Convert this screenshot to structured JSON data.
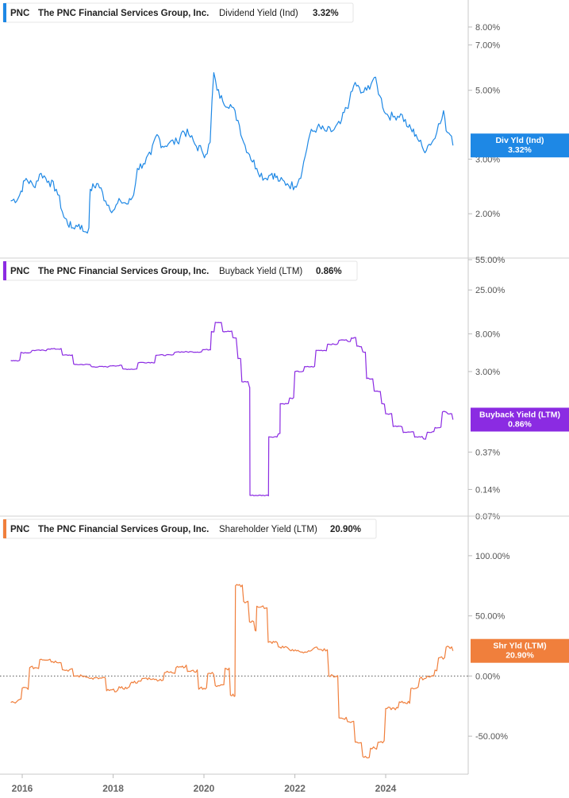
{
  "chart_data": [
    {
      "type": "line",
      "ticker": "PNC",
      "company": "The PNC Financial Services Group, Inc.",
      "metric": "Dividend Yield (Ind)",
      "current_value": "3.32%",
      "badge_label": "Div Yld (Ind)",
      "color": "#1e88e5",
      "scale": "log",
      "ylim": [
        1.5,
        9.0
      ],
      "yticks": [
        {
          "v": 8.0,
          "label": "8.00%"
        },
        {
          "v": 7.0,
          "label": "7.00%"
        },
        {
          "v": 5.0,
          "label": "5.00%"
        },
        {
          "v": 3.0,
          "label": "3.00%"
        },
        {
          "v": 2.0,
          "label": "2.00%"
        }
      ],
      "zero_line": false,
      "points": [
        [
          "2015-10-01",
          2.2
        ],
        [
          "2015-12-01",
          2.25
        ],
        [
          "2016-02-01",
          2.6
        ],
        [
          "2016-04-01",
          2.45
        ],
        [
          "2016-06-01",
          2.7
        ],
        [
          "2016-08-01",
          2.55
        ],
        [
          "2016-10-01",
          2.4
        ],
        [
          "2016-12-01",
          1.95
        ],
        [
          "2017-02-01",
          1.8
        ],
        [
          "2017-04-01",
          1.85
        ],
        [
          "2017-05-15",
          1.75
        ],
        [
          "2017-06-20",
          1.8
        ],
        [
          "2017-07-01",
          2.4
        ],
        [
          "2017-09-01",
          2.5
        ],
        [
          "2017-11-01",
          2.2
        ],
        [
          "2018-01-01",
          2.05
        ],
        [
          "2018-03-01",
          2.2
        ],
        [
          "2018-05-01",
          2.15
        ],
        [
          "2018-06-15",
          2.3
        ],
        [
          "2018-07-15",
          2.8
        ],
        [
          "2018-09-01",
          2.9
        ],
        [
          "2018-11-01",
          3.1
        ],
        [
          "2018-12-20",
          3.6
        ],
        [
          "2019-02-01",
          3.3
        ],
        [
          "2019-04-01",
          3.4
        ],
        [
          "2019-06-01",
          3.4
        ],
        [
          "2019-07-15",
          3.7
        ],
        [
          "2019-09-01",
          3.6
        ],
        [
          "2019-11-01",
          3.3
        ],
        [
          "2019-12-15",
          3.2
        ],
        [
          "2020-01-15",
          3.1
        ],
        [
          "2020-02-20",
          3.4
        ],
        [
          "2020-03-20",
          5.7
        ],
        [
          "2020-04-15",
          5.0
        ],
        [
          "2020-06-01",
          4.6
        ],
        [
          "2020-08-01",
          4.5
        ],
        [
          "2020-10-01",
          4.0
        ],
        [
          "2020-11-15",
          3.4
        ],
        [
          "2021-01-01",
          3.1
        ],
        [
          "2021-03-01",
          2.8
        ],
        [
          "2021-05-01",
          2.6
        ],
        [
          "2021-07-01",
          2.7
        ],
        [
          "2021-09-01",
          2.55
        ],
        [
          "2021-11-01",
          2.5
        ],
        [
          "2022-01-01",
          2.45
        ],
        [
          "2022-03-01",
          2.75
        ],
        [
          "2022-05-01",
          3.6
        ],
        [
          "2022-07-01",
          3.8
        ],
        [
          "2022-09-01",
          3.7
        ],
        [
          "2022-11-01",
          3.7
        ],
        [
          "2023-01-01",
          3.9
        ],
        [
          "2023-03-15",
          4.6
        ],
        [
          "2023-05-01",
          5.3
        ],
        [
          "2023-06-15",
          4.9
        ],
        [
          "2023-08-01",
          5.0
        ],
        [
          "2023-10-01",
          5.5
        ],
        [
          "2023-11-15",
          4.8
        ],
        [
          "2024-01-01",
          4.2
        ],
        [
          "2024-03-01",
          4.1
        ],
        [
          "2024-05-01",
          4.2
        ],
        [
          "2024-07-01",
          3.8
        ],
        [
          "2024-09-01",
          3.6
        ],
        [
          "2024-11-01",
          3.2
        ],
        [
          "2024-12-15",
          3.35
        ],
        [
          "2025-02-01",
          3.5
        ],
        [
          "2025-03-01",
          3.9
        ],
        [
          "2025-04-10",
          4.3
        ],
        [
          "2025-05-01",
          3.7
        ],
        [
          "2025-06-01",
          3.6
        ],
        [
          "2025-06-25",
          3.32
        ]
      ]
    },
    {
      "type": "line",
      "ticker": "PNC",
      "company": "The PNC Financial Services Group, Inc.",
      "metric": "Buyback Yield (LTM)",
      "current_value": "0.86%",
      "badge_label": "Buyback Yield (LTM)",
      "color": "#8b2be2",
      "scale": "log",
      "ylim": [
        0.07,
        55.0
      ],
      "yticks": [
        {
          "v": 55.0,
          "label": "55.00%"
        },
        {
          "v": 25.0,
          "label": "25.00%"
        },
        {
          "v": 8.0,
          "label": "8.00%"
        },
        {
          "v": 3.0,
          "label": "3.00%"
        },
        {
          "v": 0.37,
          "label": "0.37%"
        },
        {
          "v": 0.14,
          "label": "0.14%"
        },
        {
          "v": 0.07,
          "label": "0.07%"
        }
      ],
      "zero_line": false,
      "points": [
        [
          "2015-10-01",
          4.0
        ],
        [
          "2016-01-01",
          4.9
        ],
        [
          "2016-04-01",
          5.2
        ],
        [
          "2016-08-01",
          5.4
        ],
        [
          "2016-12-01",
          4.6
        ],
        [
          "2017-03-01",
          3.6
        ],
        [
          "2017-08-01",
          3.4
        ],
        [
          "2018-01-01",
          3.5
        ],
        [
          "2018-04-01",
          3.2
        ],
        [
          "2018-08-01",
          3.8
        ],
        [
          "2019-01-01",
          4.6
        ],
        [
          "2019-06-01",
          5.0
        ],
        [
          "2019-10-01",
          5.0
        ],
        [
          "2020-01-01",
          5.3
        ],
        [
          "2020-02-15",
          5.3
        ],
        [
          "2020-03-01",
          8.5
        ],
        [
          "2020-04-01",
          10.8
        ],
        [
          "2020-06-01",
          8.5
        ],
        [
          "2020-09-01",
          7.2
        ],
        [
          "2020-10-01",
          4.2
        ],
        [
          "2020-11-01",
          2.3
        ],
        [
          "2021-01-01",
          2.0
        ],
        [
          "2021-01-05",
          0.12
        ],
        [
          "2021-06-01",
          0.12
        ],
        [
          "2021-06-05",
          0.55
        ],
        [
          "2021-09-01",
          0.6
        ],
        [
          "2021-09-05",
          1.3
        ],
        [
          "2021-12-01",
          1.5
        ],
        [
          "2022-01-01",
          3.0
        ],
        [
          "2022-04-01",
          3.4
        ],
        [
          "2022-07-01",
          5.2
        ],
        [
          "2022-10-01",
          6.1
        ],
        [
          "2023-01-01",
          6.8
        ],
        [
          "2023-03-01",
          6.6
        ],
        [
          "2023-04-01",
          7.2
        ],
        [
          "2023-05-15",
          5.8
        ],
        [
          "2023-07-01",
          5.0
        ],
        [
          "2023-08-01",
          2.5
        ],
        [
          "2023-10-01",
          1.8
        ],
        [
          "2023-12-01",
          1.3
        ],
        [
          "2024-01-01",
          1.0
        ],
        [
          "2024-03-01",
          0.72
        ],
        [
          "2024-06-01",
          0.62
        ],
        [
          "2024-09-01",
          0.55
        ],
        [
          "2024-11-01",
          0.52
        ],
        [
          "2024-12-01",
          0.62
        ],
        [
          "2025-02-01",
          0.7
        ],
        [
          "2025-04-01",
          1.05
        ],
        [
          "2025-05-15",
          1.0
        ],
        [
          "2025-06-25",
          0.86
        ]
      ]
    },
    {
      "type": "line",
      "ticker": "PNC",
      "company": "The PNC Financial Services Group, Inc.",
      "metric": "Shareholder Yield (LTM)",
      "current_value": "20.90%",
      "badge_label": "Shr Yld (LTM)",
      "color": "#f07f3c",
      "scale": "linear",
      "ylim": [
        -75.0,
        125.0
      ],
      "yticks": [
        {
          "v": 100.0,
          "label": "100.00%"
        },
        {
          "v": 50.0,
          "label": "50.00%"
        },
        {
          "v": 0.0,
          "label": "0.00%"
        },
        {
          "v": -50.0,
          "label": "-50.00%"
        }
      ],
      "zero_line": true,
      "points": [
        [
          "2015-10-01",
          -22.0
        ],
        [
          "2015-12-01",
          -20.0
        ],
        [
          "2016-01-01",
          -10.0
        ],
        [
          "2016-03-01",
          7.0
        ],
        [
          "2016-06-01",
          14.0
        ],
        [
          "2016-09-01",
          12.0
        ],
        [
          "2016-12-01",
          5.0
        ],
        [
          "2017-03-01",
          0.0
        ],
        [
          "2017-07-01",
          -2.0
        ],
        [
          "2017-12-01",
          -12.0
        ],
        [
          "2018-03-01",
          -10.0
        ],
        [
          "2018-06-01",
          -5.0
        ],
        [
          "2018-09-01",
          -2.0
        ],
        [
          "2018-12-01",
          -3.0
        ],
        [
          "2019-03-01",
          3.0
        ],
        [
          "2019-06-01",
          8.0
        ],
        [
          "2019-09-01",
          4.0
        ],
        [
          "2019-12-01",
          -10.0
        ],
        [
          "2020-02-01",
          2.0
        ],
        [
          "2020-04-01",
          -8.0
        ],
        [
          "2020-07-01",
          6.0
        ],
        [
          "2020-08-01",
          -16.0
        ],
        [
          "2020-09-01",
          -17.0
        ],
        [
          "2020-09-10",
          75.0
        ],
        [
          "2020-11-15",
          62.0
        ],
        [
          "2021-01-01",
          45.0
        ],
        [
          "2021-02-15",
          38.0
        ],
        [
          "2021-03-01",
          58.0
        ],
        [
          "2021-05-01",
          56.0
        ],
        [
          "2021-06-01",
          28.0
        ],
        [
          "2021-09-01",
          24.0
        ],
        [
          "2021-12-01",
          21.0
        ],
        [
          "2022-03-01",
          20.0
        ],
        [
          "2022-06-01",
          23.0
        ],
        [
          "2022-08-01",
          22.0
        ],
        [
          "2022-10-01",
          0.0
        ],
        [
          "2023-01-01",
          -35.0
        ],
        [
          "2023-03-01",
          -38.0
        ],
        [
          "2023-05-01",
          -55.0
        ],
        [
          "2023-07-01",
          -67.0
        ],
        [
          "2023-09-01",
          -60.0
        ],
        [
          "2023-11-01",
          -55.0
        ],
        [
          "2024-01-01",
          -27.0
        ],
        [
          "2024-05-01",
          -22.0
        ],
        [
          "2024-08-01",
          -10.0
        ],
        [
          "2024-10-01",
          -2.0
        ],
        [
          "2024-12-01",
          0.0
        ],
        [
          "2025-02-01",
          5.0
        ],
        [
          "2025-03-01",
          15.0
        ],
        [
          "2025-05-01",
          24.0
        ],
        [
          "2025-06-25",
          20.9
        ]
      ]
    }
  ],
  "x_axis": {
    "labels": [
      "2016",
      "2018",
      "2020",
      "2022",
      "2024"
    ],
    "start": "2015-10-01",
    "end": "2025-10-01"
  }
}
